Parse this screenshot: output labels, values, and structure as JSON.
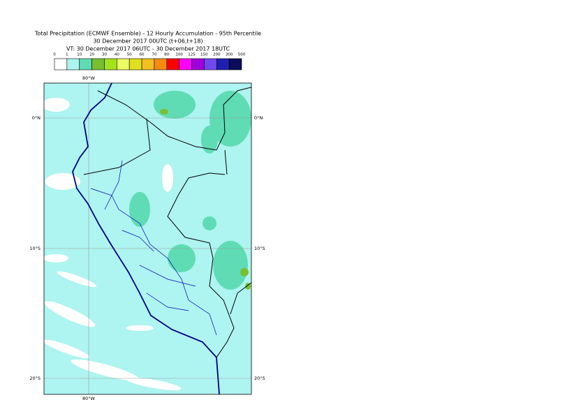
{
  "header": {
    "title_lines": [
      "Total Precipitation (ECMWF Ensemble) - 12 Hourly Accumulation - 95th Percentile",
      "30 December 2017 00UTC (t+06,t+18)",
      "VT: 30 December 2017 06UTC - 30 December 2017 18UTC"
    ]
  },
  "legend": {
    "labels": [
      0,
      1,
      10,
      20,
      30,
      40,
      50,
      60,
      70,
      80,
      100,
      125,
      150,
      200,
      300,
      500
    ],
    "colors": [
      "#ffffff",
      "#aef4f0",
      "#5fdcb4",
      "#78c030",
      "#a2e41c",
      "#ecfa64",
      "#e0e020",
      "#f4c020",
      "#f48c10",
      "#ff0000",
      "#ff00ff",
      "#a000dc",
      "#7048f0",
      "#2020b0",
      "#0c0c5c"
    ]
  },
  "map": {
    "longitude_label": "80°W",
    "latitude_labels": [
      "0°N",
      "10°S",
      "20°S"
    ]
  }
}
